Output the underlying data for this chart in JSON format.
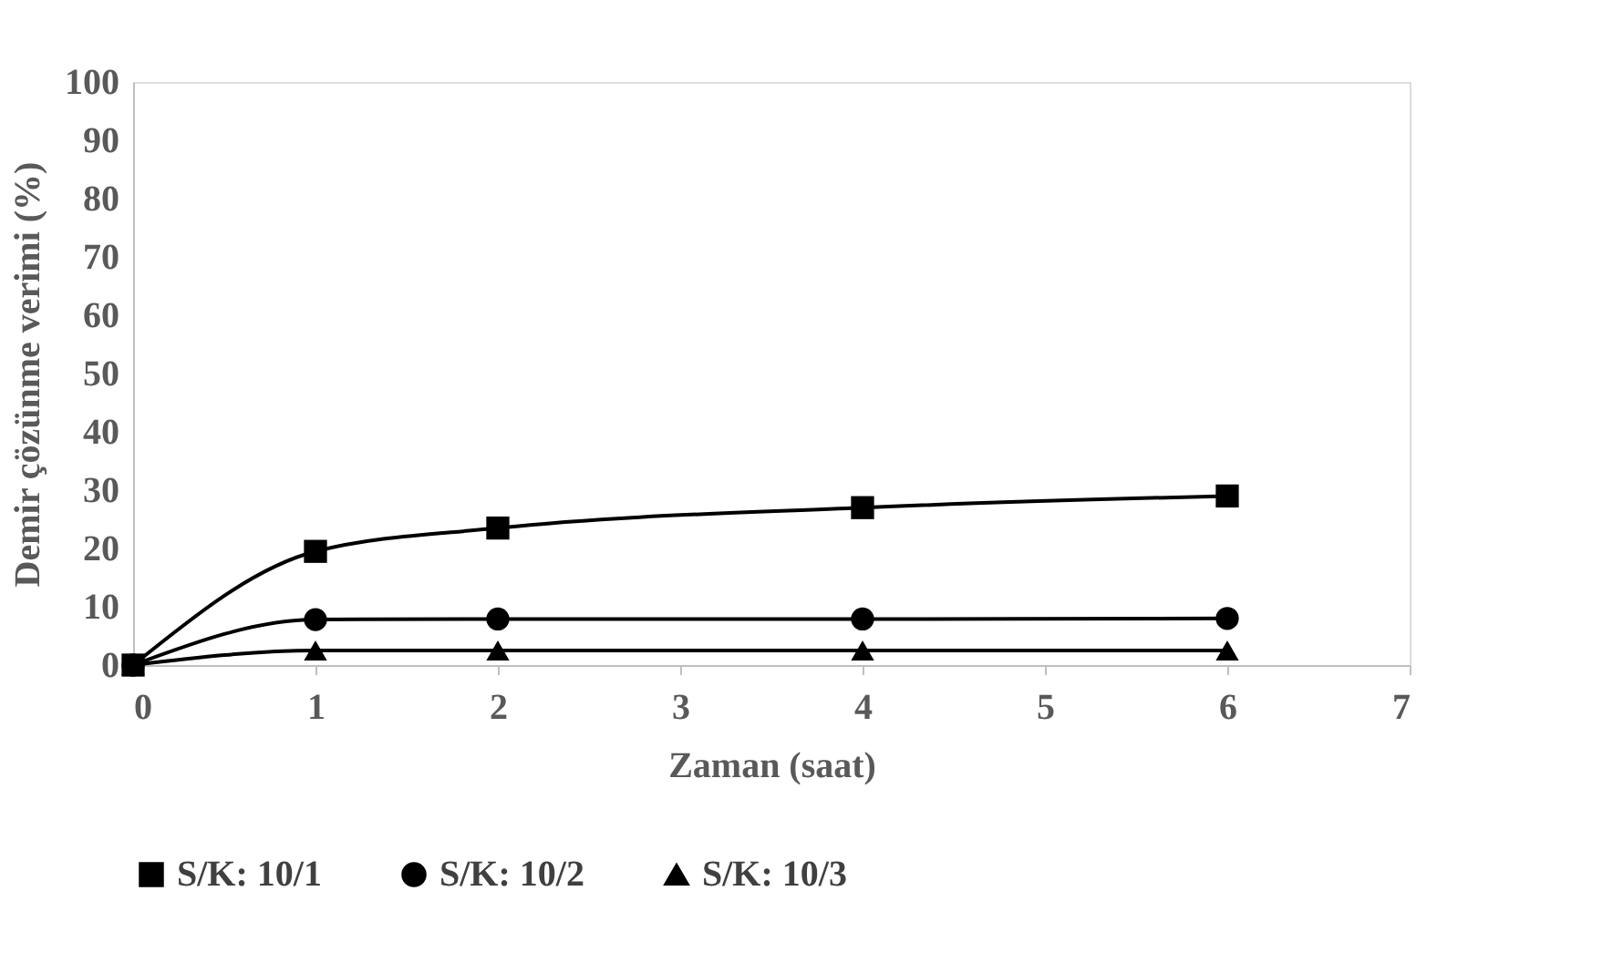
{
  "chart_data": {
    "type": "line",
    "xlabel": "Zaman (saat)",
    "ylabel": "Demir çözünme verimi (%)",
    "x": [
      0,
      1,
      2,
      4,
      6
    ],
    "series": [
      {
        "name": "S/K: 10/1",
        "color": "#000000",
        "marker": "square",
        "values": [
          0,
          19.5,
          23.5,
          27,
          29
        ]
      },
      {
        "name": "S/K: 10/2",
        "color": "#000000",
        "marker": "circle",
        "values": [
          0,
          7.8,
          7.9,
          7.9,
          8
        ]
      },
      {
        "name": "S/K: 10/3",
        "color": "#000000",
        "marker": "triangle",
        "values": [
          0,
          2.5,
          2.5,
          2.5,
          2.5
        ]
      }
    ],
    "xlim": [
      0,
      7
    ],
    "xticks": [
      0,
      1,
      2,
      3,
      4,
      5,
      6,
      7
    ],
    "ylim": [
      0,
      100
    ],
    "yticks": [
      0,
      10,
      20,
      30,
      40,
      50,
      60,
      70,
      80,
      90,
      100
    ],
    "grid": false,
    "legend": "bottom"
  }
}
